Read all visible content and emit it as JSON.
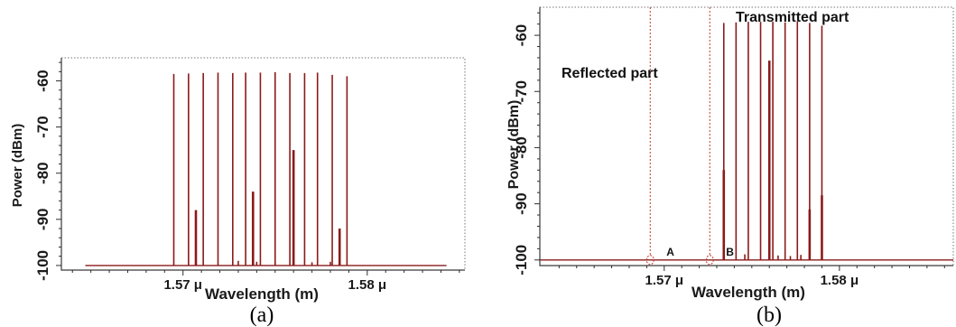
{
  "chart_data": [
    {
      "panel": "(a)",
      "type": "line",
      "xlabel": "Wavelength (m)",
      "ylabel": "Power (dBm)",
      "xlim": [
        1.5634,
        1.5853
      ],
      "ylim": [
        -101,
        -55
      ],
      "x_ticks": [
        {
          "value": 1.57,
          "label": "1.57 μ"
        },
        {
          "value": 1.58,
          "label": "1.58 μ"
        }
      ],
      "y_ticks": [
        {
          "value": -60,
          "label": "-60"
        },
        {
          "value": -70,
          "label": "-70"
        },
        {
          "value": -80,
          "label": "-80"
        },
        {
          "value": -90,
          "label": "-90"
        },
        {
          "value": -100,
          "label": "-100"
        }
      ],
      "grid": false,
      "color": "#8b1a1a",
      "noise_floor": -100,
      "series": [
        {
          "x": [
            1.5695,
            1.5703,
            1.5711,
            1.5719,
            1.5727,
            1.5734,
            1.5742,
            1.575,
            1.5758,
            1.5766,
            1.5773,
            1.5781,
            1.5789
          ],
          "values": [
            -58.5,
            -58.4,
            -58.3,
            -58.2,
            -58.3,
            -58.2,
            -58.2,
            -58.1,
            -58.3,
            -58.3,
            -58.2,
            -58.7,
            -59.0
          ]
        },
        {
          "x": [
            1.5707,
            1.5738,
            1.576,
            1.5785
          ],
          "values": [
            -88.0,
            -84.0,
            -75.0,
            -92.0
          ]
        },
        {
          "x": [
            1.573,
            1.574,
            1.575,
            1.577,
            1.578
          ],
          "values": [
            -99.0,
            -99.2,
            -99.2,
            -99.3,
            -99.2
          ]
        }
      ]
    },
    {
      "panel": "(b)",
      "type": "line",
      "xlabel": "Wavelength (m)",
      "ylabel": "Power (dBm)",
      "xlim": [
        1.5629,
        1.5865
      ],
      "ylim": [
        -101,
        -55
      ],
      "x_ticks": [
        {
          "value": 1.57,
          "label": "1.57 μ"
        },
        {
          "value": 1.58,
          "label": "1.58 μ"
        }
      ],
      "y_ticks": [
        {
          "value": -60,
          "label": "-60"
        },
        {
          "value": -70,
          "label": "-70"
        },
        {
          "value": -80,
          "label": "-80"
        },
        {
          "value": -90,
          "label": "-90"
        },
        {
          "value": -100,
          "label": "-100"
        }
      ],
      "grid": false,
      "color": "#8b1a1a",
      "noise_floor": -100,
      "markers": [
        {
          "label": "A",
          "x": 1.5692
        },
        {
          "label": "B",
          "x": 1.5726
        }
      ],
      "annotations": [
        "Reflected part",
        "Transmitted part"
      ],
      "series": [
        {
          "x": [
            1.5734,
            1.5741,
            1.5748,
            1.5755,
            1.5762,
            1.5769,
            1.5776,
            1.5783,
            1.579
          ],
          "values": [
            -57.8,
            -57.7,
            -57.6,
            -57.6,
            -57.6,
            -57.7,
            -57.5,
            -57.8,
            -58.3
          ]
        },
        {
          "x": [
            1.5734,
            1.576,
            1.5783,
            1.579
          ],
          "values": [
            -84.0,
            -64.5,
            -91.0,
            -88.5
          ]
        },
        {
          "x": [
            1.5746,
            1.5765,
            1.5772,
            1.5778
          ],
          "values": [
            -99.0,
            -99.2,
            -99.3,
            -99.1
          ]
        }
      ]
    }
  ],
  "captions": [
    "(a)",
    "(b)"
  ]
}
